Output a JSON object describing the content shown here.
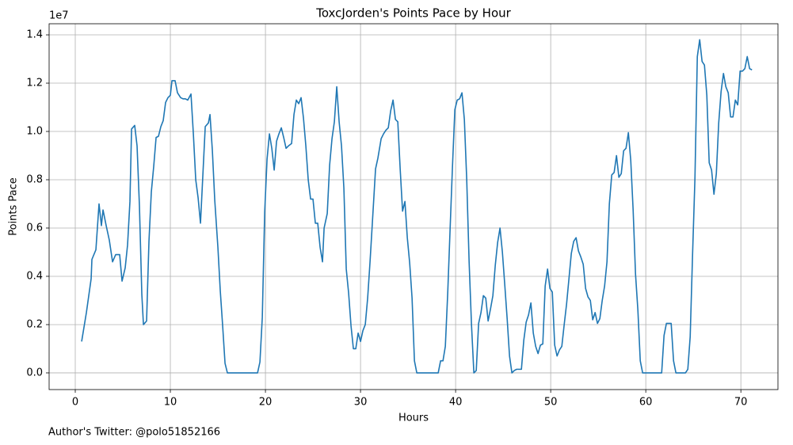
{
  "chart_data": {
    "type": "line",
    "title": "ToxcJorden's Points Pace by Hour",
    "x_label": "Hours",
    "y_label": "Points Pace",
    "y_offset_label": "1e7",
    "footnote": "Author's Twitter: @polo51852166",
    "grid": true,
    "xlim": [
      -2.75,
      73.9
    ],
    "ylim": [
      -0.069,
      1.446
    ],
    "xticks": [
      0,
      10,
      20,
      30,
      40,
      50,
      60,
      70
    ],
    "yticks": [
      {
        "value": 0,
        "label": "0.0"
      },
      0.2,
      0.4,
      0.6,
      0.8,
      {
        "value": 1,
        "label": "1.0"
      },
      1.2,
      1.4
    ],
    "x": [
      0.67,
      1.17,
      1.67,
      1.75,
      2.17,
      2.5,
      2.75,
      2.92,
      3.25,
      3.58,
      3.92,
      4.25,
      4.67,
      4.92,
      5.25,
      5.5,
      5.75,
      5.92,
      6.25,
      6.5,
      6.75,
      7.0,
      7.17,
      7.5,
      7.75,
      8.0,
      8.25,
      8.5,
      8.75,
      9.0,
      9.25,
      9.5,
      9.75,
      10.0,
      10.17,
      10.5,
      10.75,
      11.08,
      11.33,
      11.58,
      11.83,
      12.17,
      12.42,
      12.67,
      12.92,
      13.17,
      13.42,
      13.67,
      14.0,
      14.17,
      14.42,
      14.67,
      15.0,
      15.25,
      15.5,
      15.75,
      16.0,
      19.17,
      19.42,
      19.67,
      19.92,
      20.17,
      20.42,
      20.67,
      20.92,
      21.17,
      21.42,
      21.67,
      21.92,
      22.17,
      22.42,
      22.75,
      23.0,
      23.25,
      23.5,
      23.75,
      24.0,
      24.25,
      24.5,
      24.75,
      25.0,
      25.25,
      25.5,
      25.75,
      26.0,
      26.17,
      26.5,
      26.75,
      27.0,
      27.25,
      27.5,
      27.75,
      28.0,
      28.25,
      28.5,
      28.75,
      29.0,
      29.25,
      29.5,
      29.75,
      30.0,
      30.25,
      30.5,
      30.75,
      31.0,
      31.25,
      31.58,
      31.83,
      32.17,
      32.42,
      32.67,
      32.92,
      33.17,
      33.42,
      33.67,
      33.92,
      34.17,
      34.42,
      34.67,
      34.92,
      35.17,
      35.42,
      35.67,
      35.92,
      38.17,
      38.42,
      38.67,
      38.92,
      39.17,
      39.42,
      39.67,
      39.92,
      40.17,
      40.42,
      40.67,
      40.92,
      41.17,
      41.42,
      41.67,
      41.92,
      42.17,
      42.42,
      42.67,
      42.92,
      43.17,
      43.42,
      43.67,
      43.92,
      44.17,
      44.42,
      44.67,
      44.92,
      45.17,
      45.42,
      45.67,
      45.92,
      46.17,
      46.42,
      46.67,
      46.92,
      47.17,
      47.42,
      47.67,
      47.92,
      48.17,
      48.42,
      48.67,
      48.92,
      49.17,
      49.42,
      49.67,
      49.92,
      50.17,
      50.42,
      50.67,
      50.92,
      51.17,
      51.42,
      51.67,
      51.92,
      52.17,
      52.42,
      52.67,
      52.92,
      53.17,
      53.42,
      53.67,
      53.92,
      54.17,
      54.42,
      54.67,
      54.92,
      55.17,
      55.42,
      55.67,
      55.92,
      56.17,
      56.42,
      56.67,
      56.92,
      57.17,
      57.42,
      57.67,
      57.92,
      58.17,
      58.42,
      58.67,
      58.92,
      59.17,
      59.42,
      59.67,
      61.67,
      61.92,
      62.17,
      62.42,
      62.67,
      62.92,
      63.17,
      64.17,
      64.42,
      64.67,
      64.92,
      65.17,
      65.42,
      65.67,
      65.92,
      66.17,
      66.42,
      66.67,
      66.92,
      67.17,
      67.42,
      67.67,
      67.92,
      68.17,
      68.42,
      68.67,
      68.92,
      69.17,
      69.42,
      69.67,
      69.92,
      70.17,
      70.42,
      70.67,
      70.92,
      71.17
    ],
    "series": [
      {
        "name": "Points Pace",
        "color": "#1f77b4",
        "values": [
          0.13,
          0.25,
          0.39,
          0.47,
          0.51,
          0.7,
          0.61,
          0.675,
          0.61,
          0.55,
          0.46,
          0.49,
          0.49,
          0.38,
          0.435,
          0.53,
          0.71,
          1.01,
          1.025,
          0.94,
          0.69,
          0.325,
          0.2,
          0.215,
          0.545,
          0.75,
          0.855,
          0.975,
          0.98,
          1.02,
          1.045,
          1.12,
          1.14,
          1.15,
          1.21,
          1.21,
          1.16,
          1.14,
          1.135,
          1.135,
          1.13,
          1.155,
          0.99,
          0.8,
          0.725,
          0.62,
          0.82,
          1.02,
          1.035,
          1.07,
          0.92,
          0.715,
          0.52,
          0.34,
          0.195,
          0.04,
          0,
          0,
          0.045,
          0.23,
          0.665,
          0.885,
          0.99,
          0.93,
          0.84,
          0.96,
          0.99,
          1.015,
          0.975,
          0.93,
          0.94,
          0.95,
          1.07,
          1.13,
          1.115,
          1.14,
          1.055,
          0.94,
          0.8,
          0.72,
          0.72,
          0.62,
          0.62,
          0.52,
          0.46,
          0.6,
          0.66,
          0.86,
          0.97,
          1.04,
          1.185,
          1.04,
          0.94,
          0.765,
          0.43,
          0.33,
          0.195,
          0.1,
          0.1,
          0.165,
          0.13,
          0.175,
          0.2,
          0.31,
          0.46,
          0.625,
          0.845,
          0.89,
          0.97,
          0.99,
          1.005,
          1.015,
          1.085,
          1.13,
          1.05,
          1.04,
          0.845,
          0.67,
          0.71,
          0.56,
          0.455,
          0.31,
          0.05,
          0,
          0,
          0.05,
          0.05,
          0.11,
          0.33,
          0.595,
          0.855,
          1.09,
          1.13,
          1.135,
          1.16,
          1.05,
          0.8,
          0.46,
          0.2,
          0,
          0.01,
          0.205,
          0.25,
          0.32,
          0.31,
          0.215,
          0.265,
          0.32,
          0.445,
          0.54,
          0.6,
          0.5,
          0.365,
          0.225,
          0.07,
          0,
          0.01,
          0.015,
          0.015,
          0.015,
          0.135,
          0.21,
          0.24,
          0.29,
          0.165,
          0.11,
          0.08,
          0.115,
          0.12,
          0.36,
          0.43,
          0.35,
          0.335,
          0.115,
          0.07,
          0.095,
          0.11,
          0.2,
          0.285,
          0.39,
          0.495,
          0.545,
          0.56,
          0.505,
          0.48,
          0.45,
          0.35,
          0.315,
          0.3,
          0.22,
          0.25,
          0.205,
          0.225,
          0.3,
          0.36,
          0.46,
          0.7,
          0.82,
          0.83,
          0.9,
          0.81,
          0.825,
          0.92,
          0.93,
          0.995,
          0.88,
          0.675,
          0.41,
          0.26,
          0.05,
          0,
          0,
          0.155,
          0.205,
          0.205,
          0.205,
          0.05,
          0,
          0,
          0.015,
          0.15,
          0.49,
          0.805,
          1.31,
          1.38,
          1.29,
          1.275,
          1.15,
          0.87,
          0.84,
          0.74,
          0.825,
          1.035,
          1.165,
          1.24,
          1.185,
          1.16,
          1.06,
          1.06,
          1.13,
          1.11,
          1.25,
          1.25,
          1.26,
          1.31,
          1.26,
          1.255
        ]
      }
    ]
  }
}
